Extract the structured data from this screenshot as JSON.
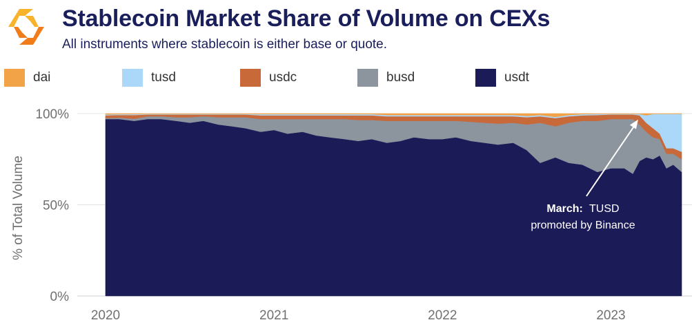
{
  "header": {
    "title": "Stablecoin Market Share of Volume on CEXs",
    "subtitle": "All instruments where stablecoin is either base or quote."
  },
  "logo": {
    "icon": "kaiko-logo-icon",
    "color_light": "#f7b32b",
    "color_dark": "#f07d1a"
  },
  "legend": [
    {
      "label": "dai",
      "color": "#f3a347"
    },
    {
      "label": "tusd",
      "color": "#abd8f8"
    },
    {
      "label": "usdc",
      "color": "#c8693a"
    },
    {
      "label": "busd",
      "color": "#8c949e"
    },
    {
      "label": "usdt",
      "color": "#1b1b57"
    }
  ],
  "chart_data": {
    "type": "area",
    "stacked": true,
    "normalized": true,
    "title": "Stablecoin Market Share of Volume on CEXs",
    "subtitle": "All instruments where stablecoin is either base or quote.",
    "xlabel": "",
    "ylabel": "% of Total Volume",
    "ylim": [
      0,
      100
    ],
    "y_ticks": [
      "0%",
      "50%",
      "100%"
    ],
    "y_tick_values": [
      0,
      50,
      100
    ],
    "x_ticks": [
      "2020",
      "2021",
      "2022",
      "2023"
    ],
    "x_tick_values": [
      2020.0,
      2021.0,
      2022.0,
      2023.0
    ],
    "x_range": [
      2020.0,
      2023.42
    ],
    "grid": true,
    "legend_position": "top",
    "x": [
      2020.0,
      2020.08,
      2020.17,
      2020.25,
      2020.33,
      2020.42,
      2020.5,
      2020.58,
      2020.67,
      2020.75,
      2020.83,
      2020.92,
      2021.0,
      2021.08,
      2021.17,
      2021.25,
      2021.33,
      2021.42,
      2021.5,
      2021.58,
      2021.67,
      2021.75,
      2021.83,
      2021.92,
      2022.0,
      2022.08,
      2022.17,
      2022.25,
      2022.33,
      2022.42,
      2022.5,
      2022.58,
      2022.67,
      2022.75,
      2022.83,
      2022.92,
      2023.0,
      2023.08,
      2023.13,
      2023.17,
      2023.21,
      2023.25,
      2023.29,
      2023.33,
      2023.37,
      2023.42
    ],
    "series": [
      {
        "name": "usdt",
        "values": [
          97,
          97,
          96,
          97,
          97,
          96,
          95,
          96,
          94,
          93,
          92,
          90,
          91,
          89,
          90,
          88,
          87,
          86,
          85,
          86,
          84,
          85,
          87,
          86,
          86,
          87,
          85,
          84,
          83,
          84,
          80,
          73,
          76,
          73,
          72,
          68,
          70,
          70,
          67,
          74,
          76,
          75,
          77,
          70,
          72,
          68
        ]
      },
      {
        "name": "busd",
        "values": [
          0.5,
          0.8,
          1.2,
          1.5,
          1.5,
          2,
          3,
          2.5,
          4,
          5,
          6,
          7,
          6,
          8,
          7,
          9,
          10,
          11,
          11.5,
          10.5,
          12,
          11,
          9,
          10,
          10,
          9,
          10.5,
          11,
          11.5,
          11,
          14,
          22,
          17,
          22,
          24,
          28,
          27,
          27,
          30,
          20,
          14,
          12,
          9,
          8,
          6,
          7
        ]
      },
      {
        "name": "usdc",
        "values": [
          1.5,
          1.5,
          2,
          1,
          1,
          1.5,
          1.5,
          1,
          1.5,
          1.5,
          1.5,
          2,
          2,
          2,
          2,
          2,
          2,
          2,
          2.5,
          2.5,
          2.5,
          2.5,
          2.5,
          2.5,
          2.5,
          2.5,
          3,
          3.5,
          4,
          3.5,
          4,
          3.5,
          4.5,
          3.5,
          3,
          3.2,
          2.5,
          2.5,
          2.5,
          5,
          5,
          5,
          3,
          3,
          3,
          4
        ]
      },
      {
        "name": "tusd",
        "values": [
          0.5,
          0.4,
          0.5,
          0.3,
          0.3,
          0.3,
          0.3,
          0.3,
          0.3,
          0.3,
          0.3,
          0.7,
          0.7,
          0.7,
          0.7,
          0.7,
          0.7,
          0.7,
          0.7,
          0.7,
          0.7,
          0.7,
          0.7,
          0.7,
          0.7,
          0.7,
          0.7,
          0.7,
          0.7,
          0.7,
          0.7,
          0.7,
          0.7,
          0.7,
          0.7,
          0.6,
          0.3,
          0.3,
          0.3,
          0.8,
          4,
          7.8,
          10.8,
          18.8,
          18.8,
          20.8
        ]
      },
      {
        "name": "dai",
        "values": [
          0.5,
          0.3,
          0.3,
          0.2,
          0.2,
          0.2,
          0.2,
          0.2,
          0.2,
          0.2,
          0.2,
          0.3,
          0.3,
          0.3,
          0.3,
          0.3,
          0.3,
          0.3,
          0.3,
          0.3,
          0.8,
          0.8,
          0.8,
          0.8,
          0.8,
          0.8,
          0.8,
          0.8,
          0.8,
          0.8,
          1.3,
          0.8,
          1.8,
          0.8,
          0.3,
          0.2,
          0.2,
          0.2,
          0.2,
          0.2,
          1,
          0.2,
          0.2,
          0.2,
          0.2,
          0.2
        ]
      }
    ],
    "annotations": [
      {
        "bold": "March:",
        "text": "TUSD",
        "line2": "promoted by Binance",
        "target_x": 2023.17,
        "target_y": 99
      }
    ]
  }
}
